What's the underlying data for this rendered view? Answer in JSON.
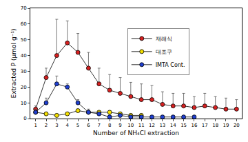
{
  "chart_data": {
    "type": "line",
    "x_label": "Number of NH₄Cl extraction",
    "y_label": "Extracted P (μmol g⁻¹)",
    "x": [
      1,
      2,
      3,
      4,
      5,
      6,
      7,
      8,
      9,
      10,
      11,
      12,
      13,
      14,
      15,
      16,
      17,
      18,
      19,
      20
    ],
    "series": [
      {
        "name": "재래식",
        "color": "#d62020",
        "marker": "circle",
        "values": [
          6,
          26,
          40,
          48,
          42,
          32,
          22,
          18,
          16,
          14,
          12,
          12,
          9,
          8,
          8,
          7,
          8,
          7,
          6,
          6
        ],
        "error": [
          2,
          6,
          23,
          14,
          12,
          10,
          10,
          10,
          10,
          9,
          10,
          9,
          8,
          8,
          8,
          7,
          8,
          7,
          7,
          6
        ]
      },
      {
        "name": "대조구",
        "color": "#f5e000",
        "marker": "circle",
        "values": [
          4,
          3,
          2,
          3,
          5,
          4,
          4,
          4,
          3,
          2,
          2,
          null,
          null,
          null,
          null,
          null,
          null,
          null,
          null,
          null
        ],
        "error": [
          1,
          1,
          1,
          1,
          1,
          1,
          1,
          1,
          1,
          1,
          1,
          null,
          null,
          null,
          null,
          null,
          null,
          null,
          null,
          null
        ]
      },
      {
        "name": "IMTA Cont.",
        "color": "#1f3fd0",
        "marker": "circle",
        "values": [
          4,
          10,
          22,
          20,
          10,
          4,
          3,
          1,
          2,
          1,
          1,
          1,
          1,
          1,
          1,
          1,
          null,
          null,
          null,
          null
        ],
        "error": [
          2,
          3,
          5,
          2,
          2,
          2,
          1,
          1,
          1,
          1,
          1,
          1,
          1,
          1,
          1,
          1,
          null,
          null,
          null,
          null
        ]
      }
    ],
    "xlim": [
      0.5,
      20.5
    ],
    "xticks": [
      1,
      2,
      3,
      4,
      5,
      6,
      7,
      8,
      9,
      10,
      11,
      12,
      13,
      14,
      15,
      16,
      17,
      18,
      19,
      20
    ],
    "ylim": [
      0,
      70
    ],
    "yticks": [
      0,
      10,
      20,
      30,
      40,
      50,
      60,
      70
    ],
    "grid": false,
    "legend": "upper right"
  }
}
